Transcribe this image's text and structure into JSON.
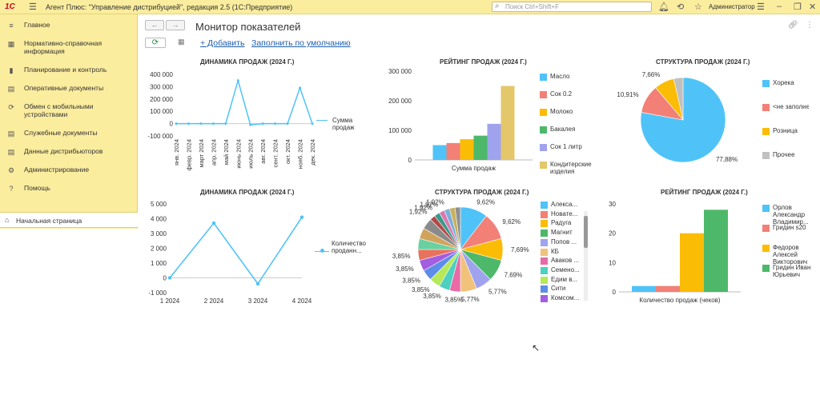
{
  "app": {
    "logo": "1С",
    "title": "Агент Плюс: \"Управление дистрибуцией\", редакция 2.5  (1С:Предприятие)",
    "search_placeholder": "Поиск Ctrl+Shift+F",
    "user": "Администратор"
  },
  "sidebar": {
    "items": [
      {
        "label": "Главное",
        "icon": "menu-icon"
      },
      {
        "label": "Нормативно-справочная информация",
        "icon": "grid-icon"
      },
      {
        "label": "Планирование и контроль",
        "icon": "chart-icon"
      },
      {
        "label": "Оперативные документы",
        "icon": "docs-icon"
      },
      {
        "label": "Обмен с мобильными устройствами",
        "icon": "sync-icon"
      },
      {
        "label": "Служебные документы",
        "icon": "docs-icon"
      },
      {
        "label": "Данные дистрибьюторов",
        "icon": "docs-icon"
      },
      {
        "label": "Администрирование",
        "icon": "gear-icon"
      },
      {
        "label": "Помощь",
        "icon": "help-icon"
      }
    ],
    "home": "Начальная страница"
  },
  "page": {
    "title": "Монитор показателей",
    "add_label": "+ Добавить",
    "fill_label": "Заполнить по умолчанию"
  },
  "colors": {
    "accent": "#4fc3f7",
    "bg": "#fbed9e"
  },
  "chart_data": [
    {
      "type": "line",
      "title": "ДИНАМИКА ПРОДАЖ (2024 Г.)",
      "categories": [
        "янв. 2024",
        "февр. 2024",
        "март 2024",
        "апр. 2024",
        "май 2024",
        "июнь 2024",
        "июль 2024",
        "авг. 2024",
        "сент. 2024",
        "окт. 2024",
        "нояб. 2024",
        "дек. 2024"
      ],
      "series": [
        {
          "name": "Сумма продаж",
          "values": [
            0,
            0,
            0,
            0,
            0,
            350000,
            -10000,
            0,
            0,
            0,
            290000,
            0
          ]
        }
      ],
      "yticks": [
        "400 000",
        "300 000",
        "200 000",
        "100 000",
        "0",
        "-100 000"
      ],
      "ylim": [
        -100000,
        400000
      ],
      "legend": "right"
    },
    {
      "type": "bar",
      "title": "РЕЙТИНГ ПРОДАЖ (2024 Г.)",
      "xlabel": "Сумма продаж",
      "series": [
        {
          "name": "Масло",
          "value": 50000,
          "color": "#4fc3f7"
        },
        {
          "name": "Сок 0.2",
          "value": 57000,
          "color": "#f28077"
        },
        {
          "name": "Молоко",
          "value": 70000,
          "color": "#fbbc05"
        },
        {
          "name": "Бакалея",
          "value": 82000,
          "color": "#4db86a"
        },
        {
          "name": "Сок 1 литр",
          "value": 122000,
          "color": "#9fa3ee"
        },
        {
          "name": "Кондитерские изделия",
          "value": 250000,
          "color": "#e3c76a"
        }
      ],
      "yticks": [
        "300 000",
        "200 000",
        "100 000",
        "0"
      ],
      "ylim": [
        0,
        300000
      ],
      "legend": "right"
    },
    {
      "type": "pie",
      "title": "СТРУКТУРА ПРОДАЖ (2024 Г.)",
      "slices": [
        {
          "name": "Хорека",
          "value": 77.88,
          "label": "77,88%",
          "color": "#4fc3f7"
        },
        {
          "name": "<не заполнено>",
          "value": 10.91,
          "label": "10,91%",
          "color": "#f28077"
        },
        {
          "name": "Розница",
          "value": 7.66,
          "label": "7,66%",
          "color": "#fbbc05"
        },
        {
          "name": "Прочее",
          "value": 3.55,
          "label": "",
          "color": "#c0c0c0"
        }
      ],
      "legend": "right"
    },
    {
      "type": "line",
      "title": "ДИНАМИКА ПРОДАЖ (2024 Г.)",
      "categories": [
        "1 2024",
        "2 2024",
        "3 2024",
        "4 2024"
      ],
      "series": [
        {
          "name": "Количество проданн...",
          "values": [
            0,
            3700,
            -400,
            4100
          ]
        }
      ],
      "yticks": [
        "5 000",
        "4 000",
        "3 000",
        "2 000",
        "1 000",
        "0",
        "-1 000"
      ],
      "ylim": [
        -1000,
        5000
      ],
      "legend": "right"
    },
    {
      "type": "pie",
      "title": "СТРУКТУРА ПРОДАЖ (2024 Г.)",
      "slices": [
        {
          "name": "Алекса...",
          "value": 9.62,
          "label": "9,62%",
          "color": "#4fc3f7"
        },
        {
          "name": "Новате...",
          "value": 9.62,
          "label": "9,62%",
          "color": "#f28077"
        },
        {
          "name": "Радуга",
          "value": 7.69,
          "label": "7,69%",
          "color": "#fbbc05"
        },
        {
          "name": "Магнит",
          "value": 7.69,
          "label": "7,69%",
          "color": "#4db86a"
        },
        {
          "name": "Попов ...",
          "value": 5.77,
          "label": "5,77%",
          "color": "#9fa3ee"
        },
        {
          "name": "КБ",
          "value": 5.77,
          "label": "5,77%",
          "color": "#f0c27a"
        },
        {
          "name": "Аваков ...",
          "value": 3.85,
          "label": "3,85%",
          "color": "#e86aa6"
        },
        {
          "name": "Семено...",
          "value": 3.85,
          "label": "3,85%",
          "color": "#4ed0c0"
        },
        {
          "name": "Едим в...",
          "value": 3.85,
          "label": "3,85%",
          "color": "#b6e85a"
        },
        {
          "name": "Сити",
          "value": 3.85,
          "label": "3,85%",
          "color": "#5d8de8"
        },
        {
          "name": "Комсом...",
          "value": 3.85,
          "label": "3,85%",
          "color": "#a35de0"
        },
        {
          "name": "",
          "value": 3.85,
          "label": "3,85%",
          "color": "#e8725d"
        },
        {
          "name": "",
          "value": 3.85,
          "label": "",
          "color": "#6ad0a0"
        },
        {
          "name": "",
          "value": 3.85,
          "label": "",
          "color": "#d0a45d"
        },
        {
          "name": "",
          "value": 3.85,
          "label": "",
          "color": "#8a8a8a"
        },
        {
          "name": "",
          "value": 1.92,
          "label": "1,92%",
          "color": "#b04a4a"
        },
        {
          "name": "",
          "value": 1.92,
          "label": "1,92%",
          "color": "#3a9a8a"
        },
        {
          "name": "",
          "value": 1.92,
          "label": "1,92%",
          "color": "#d87ab0"
        },
        {
          "name": "",
          "value": 1.92,
          "label": "1,92%",
          "color": "#7ab0d8"
        },
        {
          "name": "",
          "value": 1.92,
          "label": "",
          "color": "#c8b060"
        },
        {
          "name": "",
          "value": 1.92,
          "label": "",
          "color": "#909090"
        }
      ],
      "legend": "right"
    },
    {
      "type": "bar",
      "title": "РЕЙТИНГ ПРОДАЖ (2024 Г.)",
      "xlabel": "Количество продаж (чеков)",
      "series": [
        {
          "name": "Орлов Александр Владимир...",
          "value": 2,
          "color": "#4fc3f7"
        },
        {
          "name": "Гридин s20",
          "value": 2,
          "color": "#f28077"
        },
        {
          "name": "Федоров Алексей Викторович",
          "value": 20,
          "color": "#fbbc05"
        },
        {
          "name": "Гридин Иван Юрьевич",
          "value": 28,
          "color": "#4db86a"
        }
      ],
      "yticks": [
        "30",
        "20",
        "10",
        "0"
      ],
      "ylim": [
        0,
        30
      ],
      "legend": "right"
    }
  ]
}
